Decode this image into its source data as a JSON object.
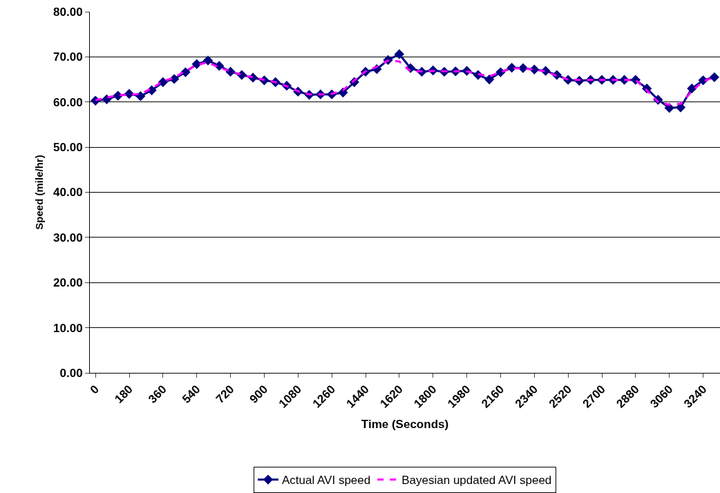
{
  "chart_data": {
    "type": "line",
    "xlabel": "Time (Seconds)",
    "ylabel": "Speed (mile/hr)",
    "categories": [
      "0",
      null,
      null,
      "180",
      null,
      null,
      "360",
      null,
      null,
      "540",
      null,
      null,
      "720",
      null,
      null,
      "900",
      null,
      null,
      "1080",
      null,
      null,
      "1260",
      null,
      null,
      "1440",
      null,
      null,
      "1620",
      null,
      null,
      "1800",
      null,
      null,
      "1980",
      null,
      null,
      "2160",
      null,
      null,
      "2340",
      null,
      null,
      "2520",
      null,
      null,
      "2700",
      null,
      null,
      "2880",
      null,
      null,
      "3060",
      null,
      null,
      "3240",
      null
    ],
    "series": [
      {
        "name": "Actual AVI speed",
        "color": "#000080",
        "marker": "diamond",
        "line_style": "solid",
        "values": [
          60.3,
          60.6,
          61.4,
          61.8,
          61.3,
          62.6,
          64.4,
          65.1,
          66.6,
          68.4,
          69.2,
          68.0,
          66.7,
          66.0,
          65.4,
          64.8,
          64.4,
          63.6,
          62.3,
          61.6,
          61.7,
          61.7,
          62.1,
          64.4,
          66.7,
          67.3,
          69.3,
          70.6,
          67.5,
          66.7,
          67.0,
          66.7,
          66.8,
          66.9,
          66.0,
          65.0,
          66.6,
          67.6,
          67.5,
          67.2,
          66.9,
          66.0,
          64.9,
          64.7,
          64.9,
          64.9,
          64.9,
          64.9,
          64.9,
          63.0,
          60.5,
          58.7,
          58.8,
          63.0,
          64.8,
          65.5
        ]
      },
      {
        "name": "Bayesian updated AVI speed",
        "color": "#ff00ff",
        "marker": "none",
        "line_style": "dashed",
        "values": [
          60.4,
          61.0,
          61.5,
          61.6,
          61.8,
          63.0,
          64.6,
          65.4,
          66.9,
          68.2,
          68.8,
          67.6,
          66.8,
          66.0,
          65.5,
          64.9,
          64.4,
          63.5,
          62.4,
          61.7,
          61.7,
          61.8,
          62.6,
          64.8,
          66.8,
          67.8,
          69.2,
          69.0,
          66.8,
          66.8,
          66.9,
          66.8,
          66.8,
          66.8,
          66.2,
          65.7,
          66.6,
          67.5,
          67.4,
          67.2,
          66.8,
          65.8,
          65.0,
          64.9,
          64.9,
          64.9,
          64.9,
          64.9,
          64.9,
          62.6,
          60.0,
          59.4,
          59.6,
          62.4,
          64.6,
          65.5
        ]
      }
    ],
    "ylim": [
      0,
      80
    ],
    "yticks": [
      {
        "value": 0,
        "label": "0.00"
      },
      {
        "value": 10,
        "label": "10.00"
      },
      {
        "value": 20,
        "label": "20.00"
      },
      {
        "value": 30,
        "label": "30.00"
      },
      {
        "value": 40,
        "label": "40.00"
      },
      {
        "value": 50,
        "label": "50.00"
      },
      {
        "value": 60,
        "label": "60.00"
      },
      {
        "value": 70,
        "label": "70.00"
      },
      {
        "value": 80,
        "label": "80.00"
      }
    ],
    "grid": "y",
    "legend": "bottom"
  }
}
